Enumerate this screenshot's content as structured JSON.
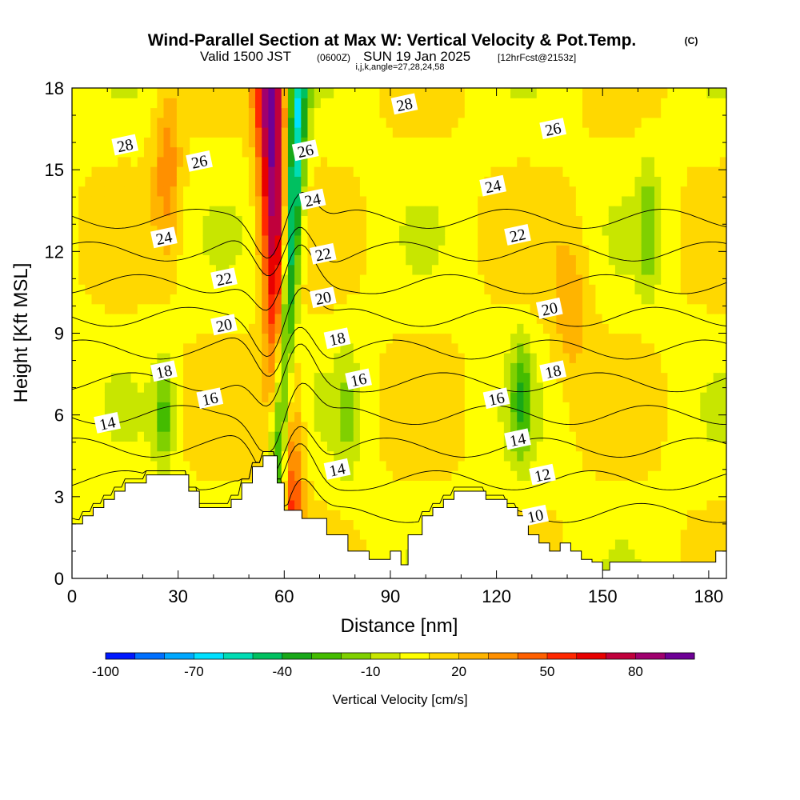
{
  "header": {
    "title": "Wind-Parallel Section at Max W: Vertical Velocity & Pot.Temp.",
    "copyright": "(C)",
    "subtitle_valid": "Valid 1500 JST",
    "subtitle_zulu": "(0600Z)",
    "subtitle_date": "SUN 19 Jan 2025",
    "subtitle_fcst": "[12hrFcst@2153z]",
    "subtitle_indices": "i,j,k,angle=27,28,24,58"
  },
  "chart_data": {
    "type": "heatmap",
    "description_fields": [
      "vertical_velocity",
      "potential_temperature_contours"
    ],
    "xlabel": "Distance [nm]",
    "ylabel": "Height [Kft MSL]",
    "xlim": [
      0,
      185
    ],
    "ylim": [
      0,
      18
    ],
    "x_ticks": [
      0,
      30,
      60,
      90,
      120,
      150,
      180
    ],
    "y_ticks": [
      0,
      3,
      6,
      9,
      12,
      15,
      18
    ],
    "colorbar": {
      "label": "Vertical Velocity [cm/s]",
      "min": -100,
      "max": 100,
      "step": 10,
      "tick_labels": [
        "-100",
        "-70",
        "-40",
        "-10",
        "20",
        "50",
        "80"
      ],
      "tick_values": [
        -100,
        -70,
        -40,
        -10,
        20,
        50,
        80
      ],
      "colors": [
        "#0018ff",
        "#0070ff",
        "#00a8ff",
        "#00e0ff",
        "#00dcb4",
        "#00c060",
        "#18a818",
        "#44bc00",
        "#80d000",
        "#c8e600",
        "#ffff00",
        "#ffd800",
        "#ffb400",
        "#ff9000",
        "#ff6000",
        "#ff2800",
        "#e80000",
        "#c0003c",
        "#a0006e",
        "#6e0096"
      ]
    },
    "updraft_band": {
      "x_at_ground": 62,
      "x_at_top": 56,
      "peak_cm_s": 90
    },
    "downdraft_band": {
      "x_at_ground": 57,
      "x_at_top": 64,
      "peak_cm_s": -90
    },
    "terrain": [
      [
        0,
        2
      ],
      [
        3,
        2
      ],
      [
        3,
        2.3
      ],
      [
        6,
        2.3
      ],
      [
        6,
        2.6
      ],
      [
        9,
        2.6
      ],
      [
        9,
        2.9
      ],
      [
        12,
        2.9
      ],
      [
        12,
        3.2
      ],
      [
        15,
        3.2
      ],
      [
        15,
        3.5
      ],
      [
        21,
        3.5
      ],
      [
        21,
        3.8
      ],
      [
        33,
        3.8
      ],
      [
        33,
        3.2
      ],
      [
        36,
        3.2
      ],
      [
        36,
        2.6
      ],
      [
        45,
        2.6
      ],
      [
        45,
        2.9
      ],
      [
        48,
        2.9
      ],
      [
        48,
        3.5
      ],
      [
        51,
        3.5
      ],
      [
        51,
        4.1
      ],
      [
        54,
        4.1
      ],
      [
        54,
        4.5
      ],
      [
        58,
        4.5
      ],
      [
        58,
        3.5
      ],
      [
        60,
        3.5
      ],
      [
        60,
        2.5
      ],
      [
        65,
        2.5
      ],
      [
        65,
        2.2
      ],
      [
        72,
        2.2
      ],
      [
        72,
        1.6
      ],
      [
        78,
        1.6
      ],
      [
        78,
        1
      ],
      [
        84,
        1
      ],
      [
        84,
        0.7
      ],
      [
        90,
        0.7
      ],
      [
        90,
        1
      ],
      [
        93,
        1
      ],
      [
        93,
        0.5
      ],
      [
        95,
        0.5
      ],
      [
        95,
        1.6
      ],
      [
        99,
        1.6
      ],
      [
        99,
        2.3
      ],
      [
        102,
        2.3
      ],
      [
        102,
        2.6
      ],
      [
        105,
        2.6
      ],
      [
        105,
        2.9
      ],
      [
        108,
        2.9
      ],
      [
        108,
        3.2
      ],
      [
        117,
        3.2
      ],
      [
        117,
        2.9
      ],
      [
        123,
        2.9
      ],
      [
        123,
        2.6
      ],
      [
        126,
        2.6
      ],
      [
        126,
        2.3
      ],
      [
        129,
        2.3
      ],
      [
        129,
        1.6
      ],
      [
        132,
        1.6
      ],
      [
        132,
        1.3
      ],
      [
        135,
        1.3
      ],
      [
        135,
        1
      ],
      [
        138,
        1
      ],
      [
        138,
        1.3
      ],
      [
        141,
        1.3
      ],
      [
        141,
        1
      ],
      [
        144,
        1
      ],
      [
        144,
        0.7
      ],
      [
        147,
        0.7
      ],
      [
        147,
        0.6
      ],
      [
        150,
        0.6
      ],
      [
        150,
        0.3
      ],
      [
        152,
        0.3
      ],
      [
        152,
        0.6
      ],
      [
        182,
        0.6
      ],
      [
        182,
        1
      ],
      [
        185,
        1
      ]
    ],
    "theta_contours": {
      "levels": [
        10,
        12,
        14,
        16,
        18,
        20,
        22,
        24,
        26,
        28
      ],
      "labels": [
        {
          "text": "28",
          "x": 15,
          "y": 15.9
        },
        {
          "text": "26",
          "x": 36,
          "y": 15.3
        },
        {
          "text": "24",
          "x": 26,
          "y": 12.5
        },
        {
          "text": "22",
          "x": 43,
          "y": 11.0
        },
        {
          "text": "20",
          "x": 43,
          "y": 9.3
        },
        {
          "text": "18",
          "x": 26,
          "y": 7.6
        },
        {
          "text": "16",
          "x": 39,
          "y": 6.6
        },
        {
          "text": "14",
          "x": 10,
          "y": 5.7
        },
        {
          "text": "28",
          "x": 94,
          "y": 17.4
        },
        {
          "text": "26",
          "x": 66,
          "y": 15.7
        },
        {
          "text": "24",
          "x": 68,
          "y": 13.9
        },
        {
          "text": "22",
          "x": 71,
          "y": 11.9
        },
        {
          "text": "20",
          "x": 71,
          "y": 10.3
        },
        {
          "text": "18",
          "x": 75,
          "y": 8.8
        },
        {
          "text": "16",
          "x": 81,
          "y": 7.3
        },
        {
          "text": "14",
          "x": 75,
          "y": 4.0
        },
        {
          "text": "26",
          "x": 136,
          "y": 16.5
        },
        {
          "text": "24",
          "x": 119,
          "y": 14.4
        },
        {
          "text": "22",
          "x": 126,
          "y": 12.6
        },
        {
          "text": "20",
          "x": 135,
          "y": 9.9
        },
        {
          "text": "18",
          "x": 136,
          "y": 7.6
        },
        {
          "text": "16",
          "x": 120,
          "y": 6.6
        },
        {
          "text": "14",
          "x": 126,
          "y": 5.1
        },
        {
          "text": "12",
          "x": 133,
          "y": 3.8
        },
        {
          "text": "10",
          "x": 131,
          "y": 2.3
        }
      ]
    }
  }
}
